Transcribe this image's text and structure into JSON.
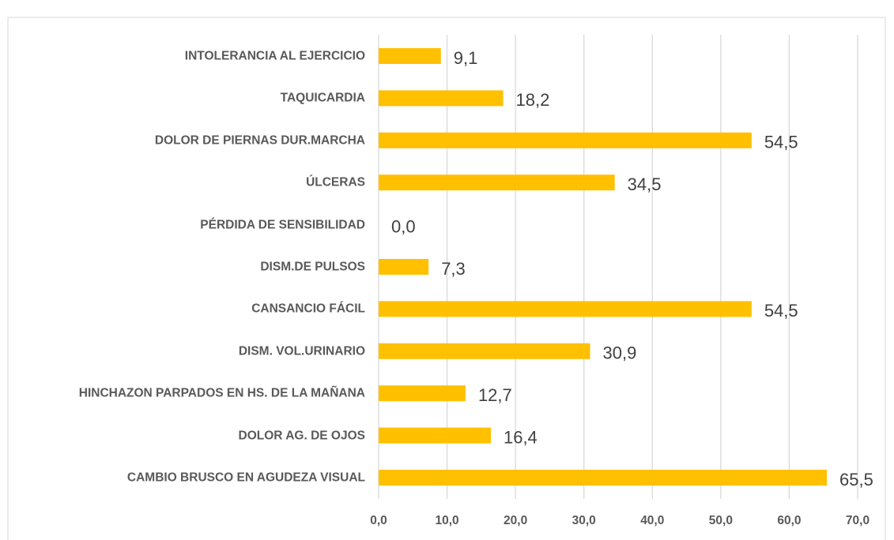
{
  "chart_data": {
    "type": "bar",
    "orientation": "horizontal",
    "color": "#ffc000",
    "grid": true,
    "categories": [
      "INTOLERANCIA AL EJERCICIO",
      "TAQUICARDIA",
      "DOLOR DE PIERNAS DUR.MARCHA",
      "ÚLCERAS",
      "PÉRDIDA DE SENSIBILIDAD",
      "DISM.DE PULSOS",
      "CANSANCIO FÁCIL",
      "DISM. VOL.URINARIO",
      "HINCHAZON PARPADOS EN HS. DE LA MAÑANA",
      "DOLOR AG. DE OJOS",
      "CAMBIO BRUSCO EN AGUDEZA VISUAL"
    ],
    "values": [
      9.1,
      18.2,
      54.5,
      34.5,
      0.0,
      7.3,
      54.5,
      30.9,
      12.7,
      16.4,
      65.5
    ],
    "value_labels": [
      "9,1",
      "18,2",
      "54,5",
      "34,5",
      "0,0",
      "7,3",
      "54,5",
      "30,9",
      "12,7",
      "16,4",
      "65,5"
    ],
    "xlim": [
      0,
      70
    ],
    "xticks": [
      {
        "value": 0,
        "label": "0,0"
      },
      {
        "value": 10,
        "label": "10,0"
      },
      {
        "value": 20,
        "label": "20,0"
      },
      {
        "value": 30,
        "label": "30,0"
      },
      {
        "value": 40,
        "label": "40,0"
      },
      {
        "value": 50,
        "label": "50,0"
      },
      {
        "value": 60,
        "label": "60,0"
      },
      {
        "value": 70,
        "label": "70,0"
      }
    ]
  }
}
